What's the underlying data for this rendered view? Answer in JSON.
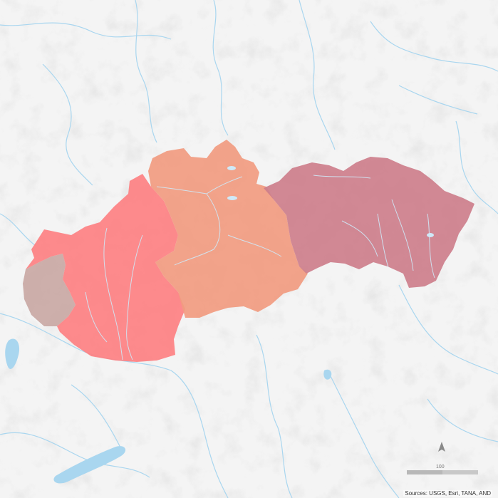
{
  "map": {
    "attribution": "Sources: USGS, Esri, TANA, AND",
    "scale_value": "100",
    "colors": {
      "background": "#f4f4f4",
      "water": "#a9d6ef",
      "region_west_small": "#c9a8a4",
      "region_west": "#fd8082",
      "region_central": "#f19b80",
      "region_east": "#cd7e8b"
    },
    "icons": [
      "north-arrow-icon"
    ],
    "regions": [
      {
        "id": "west-small",
        "color": "#c9a8a4"
      },
      {
        "id": "west",
        "color": "#fd8082"
      },
      {
        "id": "central",
        "color": "#f19b80"
      },
      {
        "id": "east",
        "color": "#cd7e8b"
      }
    ]
  }
}
